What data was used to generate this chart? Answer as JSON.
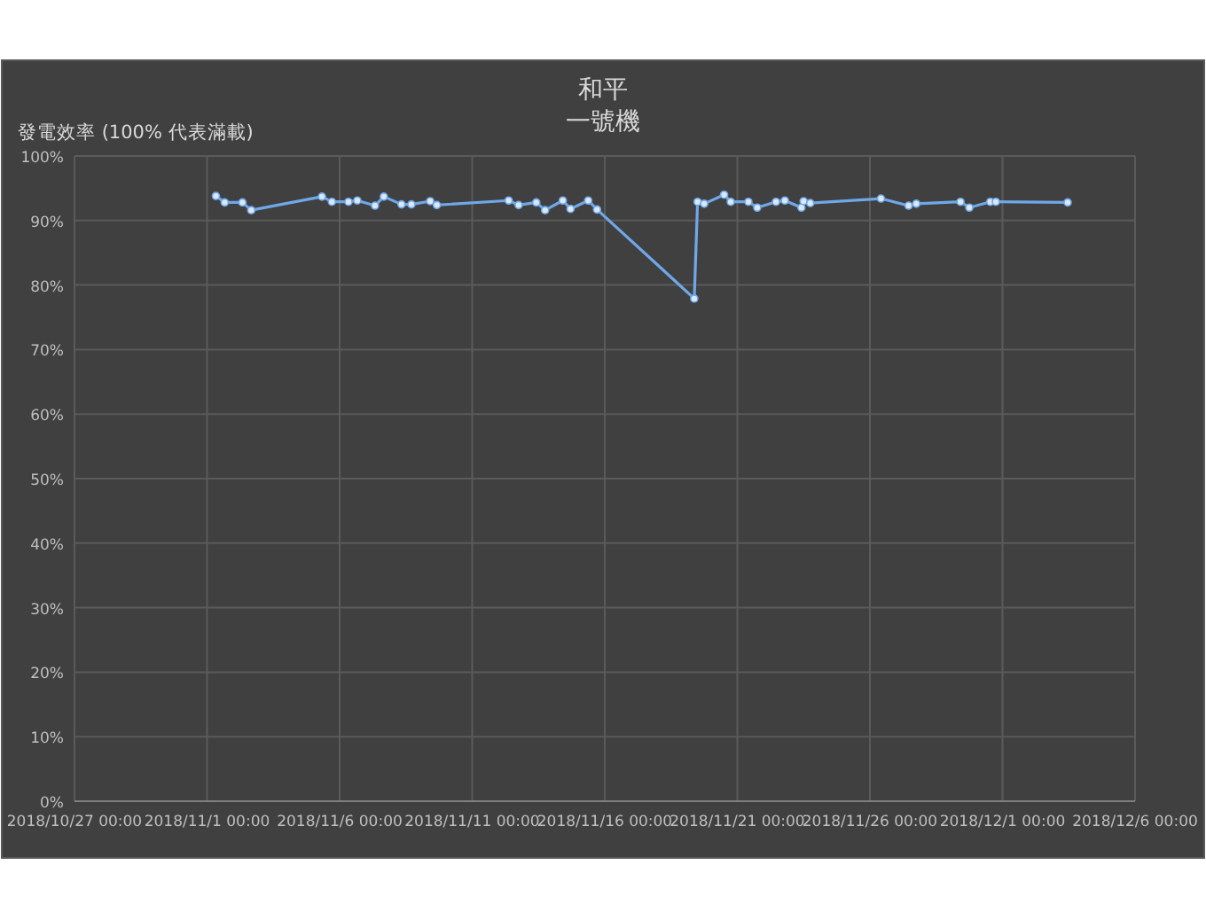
{
  "chart_data": {
    "type": "line",
    "title": "和平",
    "subtitle": "一號機",
    "ylabel": "發電效率 (100% 代表滿載)",
    "x": [
      "2018-11-01T08:00",
      "2018-11-01T16:00",
      "2018-11-02T08:00",
      "2018-11-02T16:00",
      "2018-11-05T08:00",
      "2018-11-05T17:00",
      "2018-11-06T08:00",
      "2018-11-06T16:00",
      "2018-11-07T08:00",
      "2018-11-07T16:00",
      "2018-11-08T08:00",
      "2018-11-08T17:00",
      "2018-11-09T10:00",
      "2018-11-09T16:00",
      "2018-11-12T09:00",
      "2018-11-12T18:00",
      "2018-11-13T10:00",
      "2018-11-13T18:00",
      "2018-11-14T10:00",
      "2018-11-14T17:00",
      "2018-11-15T09:00",
      "2018-11-15T17:00",
      "2018-11-19T09:00",
      "2018-11-19T12:00",
      "2018-11-19T18:00",
      "2018-11-20T12:00",
      "2018-11-20T18:00",
      "2018-11-21T10:00",
      "2018-11-21T18:00",
      "2018-11-22T11:00",
      "2018-11-22T19:00",
      "2018-11-23T10:00",
      "2018-11-23T12:00",
      "2018-11-23T18:00",
      "2018-11-26T10:00",
      "2018-11-27T11:00",
      "2018-11-27T18:00",
      "2018-11-29T10:00",
      "2018-11-29T18:00",
      "2018-11-30T13:00",
      "2018-11-30T18:00",
      "2018-12-03T11:00"
    ],
    "series": [
      {
        "color": "#6fa8e8",
        "values": [
          93.8,
          92.8,
          92.8,
          91.6,
          93.7,
          92.9,
          92.9,
          93.1,
          92.3,
          93.7,
          92.5,
          92.5,
          93.0,
          92.4,
          93.1,
          92.4,
          92.8,
          91.6,
          93.1,
          91.8,
          93.1,
          91.7,
          77.9,
          92.9,
          92.6,
          94.0,
          92.9,
          92.9,
          92.0,
          92.9,
          93.1,
          92.0,
          93.0,
          92.7,
          93.4,
          92.3,
          92.6,
          92.9,
          92.0,
          92.9,
          92.9,
          92.8
        ]
      }
    ],
    "xlim": [
      "2018-10-27",
      "2018-12-06"
    ],
    "xticks": [
      {
        "value": "2018-10-27",
        "label": "2018/10/27 00:00"
      },
      {
        "value": "2018-11-01",
        "label": "2018/11/1 00:00"
      },
      {
        "value": "2018-11-06",
        "label": "2018/11/6 00:00"
      },
      {
        "value": "2018-11-11",
        "label": "2018/11/11 00:00"
      },
      {
        "value": "2018-11-16",
        "label": "2018/11/16 00:00"
      },
      {
        "value": "2018-11-21",
        "label": "2018/11/21 00:00"
      },
      {
        "value": "2018-11-26",
        "label": "2018/11/26 00:00"
      },
      {
        "value": "2018-12-01",
        "label": "2018/12/1 00:00"
      },
      {
        "value": "2018-12-06",
        "label": "2018/12/6 00:00"
      }
    ],
    "ylim": [
      0,
      100
    ],
    "yticks": [
      {
        "value": 0,
        "label": "0%"
      },
      {
        "value": 10,
        "label": "10%"
      },
      {
        "value": 20,
        "label": "20%"
      },
      {
        "value": 30,
        "label": "30%"
      },
      {
        "value": 40,
        "label": "40%"
      },
      {
        "value": 50,
        "label": "50%"
      },
      {
        "value": 60,
        "label": "60%"
      },
      {
        "value": 70,
        "label": "70%"
      },
      {
        "value": 80,
        "label": "80%"
      },
      {
        "value": 90,
        "label": "90%"
      },
      {
        "value": 100,
        "label": "100%"
      }
    ],
    "grid": true,
    "marker": "circle",
    "line_style": "solid"
  }
}
